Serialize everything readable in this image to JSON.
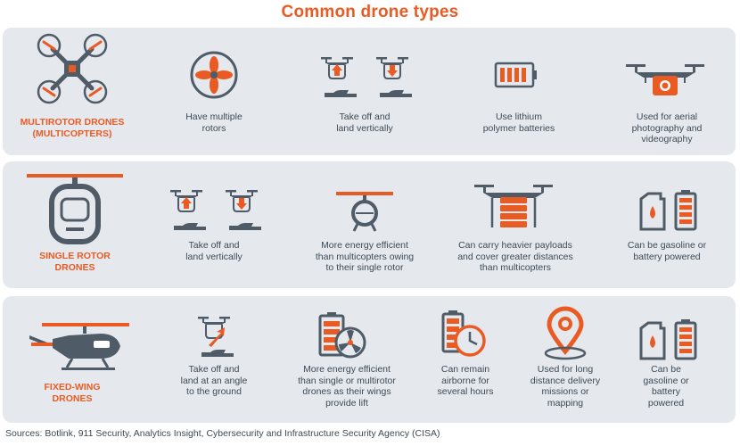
{
  "title": "Common drone types",
  "colors": {
    "accent": "#ea5b24",
    "icon": "#4f5b66",
    "panel": "#e5e9ee"
  },
  "rows": [
    {
      "type_label": [
        "MULTIROTOR DRONES",
        "(MULTICOPTERS)"
      ],
      "type_icon": "quadcopter-icon",
      "features": [
        {
          "icon": "rotor-icon",
          "text": [
            "Have multiple",
            "rotors"
          ]
        },
        {
          "icon": "vertical-takeoff-landing-icon",
          "text": [
            "Take off and",
            "land vertically"
          ]
        },
        {
          "icon": "battery-icon",
          "text": [
            "Use lithium",
            "polymer batteries"
          ]
        },
        {
          "icon": "camera-drone-icon",
          "text": [
            "Used for aerial",
            "photography and",
            "videography"
          ]
        }
      ]
    },
    {
      "type_label": [
        "SINGLE ROTOR",
        "DRONES"
      ],
      "type_icon": "single-rotor-drone-icon",
      "features": [
        {
          "icon": "vertical-takeoff-landing-icon",
          "text": [
            "Take off and",
            "land vertically"
          ]
        },
        {
          "icon": "single-rotor-icon",
          "text": [
            "More energy efficient",
            "than multicopters owing",
            "to their single rotor"
          ]
        },
        {
          "icon": "payload-drone-icon",
          "text": [
            "Can carry heavier payloads",
            "and cover greater distances",
            "than multicopters"
          ]
        },
        {
          "icon": "gas-can-battery-icon",
          "text": [
            "Can be gasoline or",
            "battery powered"
          ]
        }
      ]
    },
    {
      "type_label": [
        "FIXED-WING",
        "DRONES"
      ],
      "type_icon": "fixed-wing-drone-icon",
      "features": [
        {
          "icon": "angled-takeoff-icon",
          "text": [
            "Take off and",
            "land at an angle",
            "to the ground"
          ]
        },
        {
          "icon": "battery-fan-icon",
          "text": [
            "More energy efficient",
            "than single or multirotor",
            "drones as their wings",
            "provide lift"
          ]
        },
        {
          "icon": "battery-clock-icon",
          "text": [
            "Can remain",
            "airborne for",
            "several hours"
          ]
        },
        {
          "icon": "location-pin-icon",
          "text": [
            "Used for long",
            "distance delivery",
            "missions or",
            "mapping"
          ]
        },
        {
          "icon": "gas-can-battery-icon",
          "text": [
            "Can be",
            "gasoline or",
            "battery",
            "powered"
          ]
        }
      ]
    }
  ],
  "source": "Sources: Botlink, 911 Security, Analytics Insight, Cybersecurity and Infrastructure Security Agency (CISA)"
}
